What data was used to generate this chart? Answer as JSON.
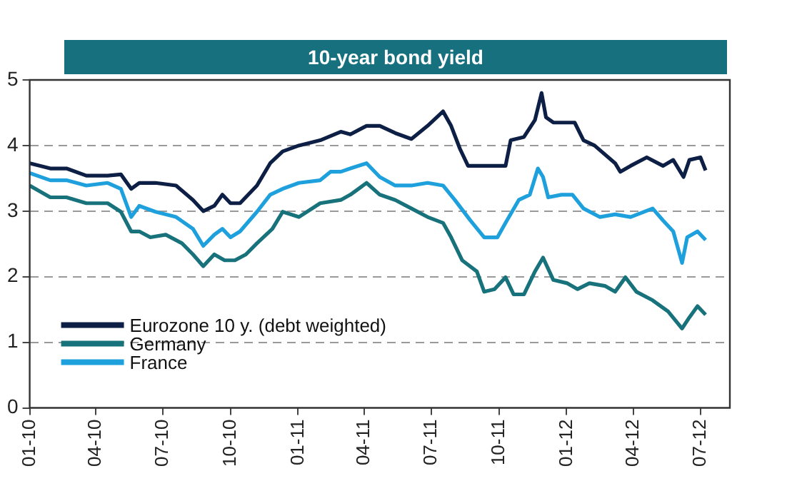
{
  "chart_data": {
    "type": "line",
    "title": "10-year bond yield",
    "xlim": [
      "2010-01-01",
      "2012-08-10"
    ],
    "xticks": [
      {
        "value": "2010-01-01",
        "label": "01-10"
      },
      {
        "value": "2010-04-01",
        "label": "04-10"
      },
      {
        "value": "2010-07-01",
        "label": "07-10"
      },
      {
        "value": "2010-10-01",
        "label": "10-10"
      },
      {
        "value": "2011-01-01",
        "label": "01-11"
      },
      {
        "value": "2011-04-01",
        "label": "04-11"
      },
      {
        "value": "2011-07-01",
        "label": "07-11"
      },
      {
        "value": "2011-10-01",
        "label": "10-11"
      },
      {
        "value": "2012-01-01",
        "label": "01-12"
      },
      {
        "value": "2012-04-01",
        "label": "04-12"
      },
      {
        "value": "2012-07-01",
        "label": "07-12"
      }
    ],
    "ylim": [
      0,
      5
    ],
    "yticks": [
      0,
      1,
      2,
      3,
      4,
      5
    ],
    "grid": "y",
    "legend": "bottom left",
    "marker": "none",
    "line_style": "solid",
    "series": [
      {
        "name": "Eurozone 10 y. (debt weighted)",
        "color": "#0d1f45",
        "x": [
          "2010-01-01",
          "2010-01-29",
          "2010-02-20",
          "2010-03-19",
          "2010-04-17",
          "2010-05-05",
          "2010-05-19",
          "2010-05-30",
          "2010-06-21",
          "2010-07-19",
          "2010-08-11",
          "2010-08-25",
          "2010-09-09",
          "2010-09-20",
          "2010-10-01",
          "2010-10-14",
          "2010-11-06",
          "2010-11-24",
          "2010-12-11",
          "2011-01-02",
          "2011-01-31",
          "2011-02-28",
          "2011-03-13",
          "2011-04-04",
          "2011-04-22",
          "2011-05-13",
          "2011-06-04",
          "2011-06-26",
          "2011-07-17",
          "2011-07-28",
          "2011-08-09",
          "2011-08-20",
          "2011-09-15",
          "2011-10-10",
          "2011-10-17",
          "2011-11-04",
          "2011-11-19",
          "2011-11-28",
          "2011-12-04",
          "2011-12-14",
          "2011-12-29",
          "2012-01-12",
          "2012-01-24",
          "2012-02-08",
          "2012-03-07",
          "2012-03-14",
          "2012-03-28",
          "2012-04-19",
          "2012-05-11",
          "2012-05-25",
          "2012-06-08",
          "2012-06-16",
          "2012-07-01",
          "2012-07-08"
        ],
        "values": [
          3.73,
          3.65,
          3.65,
          3.54,
          3.54,
          3.56,
          3.34,
          3.43,
          3.43,
          3.39,
          3.17,
          3.0,
          3.08,
          3.25,
          3.12,
          3.12,
          3.39,
          3.73,
          3.91,
          4.0,
          4.08,
          4.21,
          4.17,
          4.3,
          4.3,
          4.19,
          4.1,
          4.3,
          4.52,
          4.3,
          3.95,
          3.69,
          3.69,
          3.69,
          4.08,
          4.13,
          4.39,
          4.8,
          4.43,
          4.35,
          4.35,
          4.35,
          4.08,
          4.0,
          3.73,
          3.6,
          3.69,
          3.82,
          3.69,
          3.78,
          3.52,
          3.78,
          3.82,
          3.62
        ]
      },
      {
        "name": "Germany",
        "color": "#18727c",
        "x": [
          "2010-01-01",
          "2010-01-29",
          "2010-02-20",
          "2010-03-19",
          "2010-04-17",
          "2010-05-05",
          "2010-05-19",
          "2010-05-30",
          "2010-06-14",
          "2010-07-05",
          "2010-07-27",
          "2010-08-11",
          "2010-08-25",
          "2010-09-09",
          "2010-09-23",
          "2010-10-07",
          "2010-10-22",
          "2010-11-06",
          "2010-11-27",
          "2010-12-11",
          "2011-01-02",
          "2011-01-31",
          "2011-02-28",
          "2011-03-13",
          "2011-04-04",
          "2011-04-22",
          "2011-05-13",
          "2011-06-04",
          "2011-06-26",
          "2011-07-17",
          "2011-07-28",
          "2011-08-12",
          "2011-09-01",
          "2011-09-11",
          "2011-09-25",
          "2011-10-10",
          "2011-10-21",
          "2011-11-04",
          "2011-11-19",
          "2011-11-30",
          "2011-12-14",
          "2012-01-02",
          "2012-01-16",
          "2012-02-01",
          "2012-02-22",
          "2012-03-07",
          "2012-03-21",
          "2012-04-05",
          "2012-04-27",
          "2012-05-18",
          "2012-06-06",
          "2012-06-16",
          "2012-06-27",
          "2012-07-08"
        ],
        "values": [
          3.39,
          3.21,
          3.21,
          3.12,
          3.12,
          2.99,
          2.69,
          2.69,
          2.6,
          2.64,
          2.51,
          2.34,
          2.16,
          2.34,
          2.25,
          2.25,
          2.34,
          2.51,
          2.73,
          2.99,
          2.91,
          3.12,
          3.17,
          3.25,
          3.43,
          3.25,
          3.17,
          3.04,
          2.91,
          2.82,
          2.6,
          2.25,
          2.08,
          1.77,
          1.81,
          1.99,
          1.73,
          1.73,
          2.08,
          2.29,
          1.95,
          1.9,
          1.81,
          1.9,
          1.86,
          1.77,
          1.99,
          1.77,
          1.64,
          1.47,
          1.21,
          1.38,
          1.55,
          1.42
        ]
      },
      {
        "name": "France",
        "color": "#1ea0dc",
        "x": [
          "2010-01-01",
          "2010-01-29",
          "2010-02-20",
          "2010-03-19",
          "2010-04-17",
          "2010-05-05",
          "2010-05-19",
          "2010-05-30",
          "2010-06-21",
          "2010-07-19",
          "2010-08-11",
          "2010-08-25",
          "2010-09-09",
          "2010-09-20",
          "2010-10-01",
          "2010-10-14",
          "2010-11-06",
          "2010-11-24",
          "2010-12-11",
          "2011-01-02",
          "2011-01-31",
          "2011-02-14",
          "2011-02-28",
          "2011-03-13",
          "2011-04-04",
          "2011-04-22",
          "2011-05-13",
          "2011-06-04",
          "2011-06-26",
          "2011-07-17",
          "2011-08-02",
          "2011-08-23",
          "2011-09-11",
          "2011-09-29",
          "2011-10-10",
          "2011-10-28",
          "2011-11-12",
          "2011-11-23",
          "2011-11-30",
          "2011-12-07",
          "2011-12-25",
          "2012-01-09",
          "2012-01-24",
          "2012-02-15",
          "2012-03-07",
          "2012-03-28",
          "2012-04-27",
          "2012-05-11",
          "2012-05-25",
          "2012-06-06",
          "2012-06-13",
          "2012-06-27",
          "2012-07-08"
        ],
        "values": [
          3.58,
          3.47,
          3.47,
          3.39,
          3.43,
          3.34,
          2.91,
          3.08,
          2.99,
          2.91,
          2.73,
          2.47,
          2.64,
          2.73,
          2.6,
          2.69,
          2.99,
          3.25,
          3.34,
          3.43,
          3.47,
          3.6,
          3.6,
          3.65,
          3.73,
          3.52,
          3.39,
          3.39,
          3.43,
          3.39,
          3.17,
          2.86,
          2.6,
          2.6,
          2.82,
          3.17,
          3.25,
          3.65,
          3.52,
          3.21,
          3.25,
          3.25,
          3.04,
          2.91,
          2.95,
          2.91,
          3.04,
          2.86,
          2.69,
          2.21,
          2.6,
          2.69,
          2.56
        ]
      }
    ]
  }
}
